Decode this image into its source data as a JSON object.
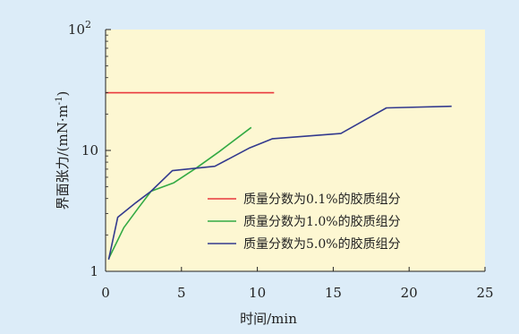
{
  "chart_data": {
    "type": "line",
    "title": "",
    "xlabel": "时间/min",
    "ylabel": "界面张力/(mN·m",
    "ylabel_exponent": "-1",
    "ylabel_close": ")",
    "xlim": [
      0,
      25
    ],
    "ylim": [
      1,
      100
    ],
    "yscale": "log",
    "xticks": [
      0,
      5,
      10,
      15,
      20,
      25
    ],
    "yticks": [
      {
        "value": 1,
        "label": "1",
        "sup": ""
      },
      {
        "value": 10,
        "label": "10",
        "sup": ""
      },
      {
        "value": 100,
        "label": "10",
        "sup": "2"
      }
    ],
    "grid": false,
    "legend_position": "lower-right",
    "plot_background": "#fdf7d2",
    "series": [
      {
        "name": "质量分数为0.1%的胶质组分",
        "color": "#e8383d",
        "x": [
          0,
          11.1
        ],
        "y": [
          30,
          30
        ]
      },
      {
        "name": "质量分数为1.0%的胶质组分",
        "color": "#33aa44",
        "x": [
          0.2,
          1.2,
          2.2,
          3.0,
          4.5,
          6.0,
          7.5,
          9.6
        ],
        "y": [
          1.27,
          2.3,
          3.4,
          4.6,
          5.4,
          7.2,
          9.8,
          15.5
        ]
      },
      {
        "name": "质量分数为5.0%的胶质组分",
        "color": "#333a8e",
        "x": [
          0.2,
          0.8,
          2.0,
          3.0,
          4.4,
          7.2,
          9.5,
          11.0,
          15.5,
          18.5,
          22.8
        ],
        "y": [
          1.25,
          2.8,
          3.7,
          4.6,
          6.8,
          7.4,
          10.5,
          12.5,
          13.8,
          22.5,
          23.2
        ]
      }
    ]
  }
}
